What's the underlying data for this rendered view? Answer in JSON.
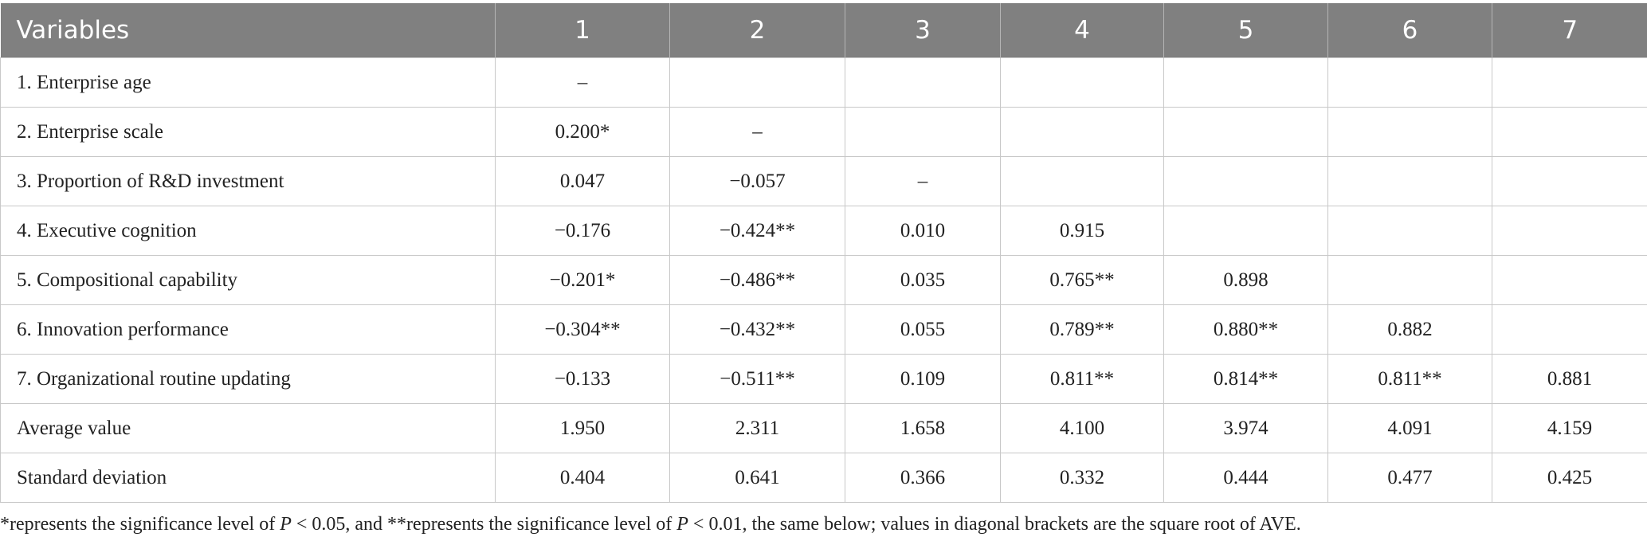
{
  "table": {
    "header": [
      "Variables",
      "1",
      "2",
      "3",
      "4",
      "5",
      "6",
      "7"
    ],
    "rows": [
      [
        "1. Enterprise age",
        "–",
        null,
        null,
        null,
        null,
        null,
        null
      ],
      [
        "2. Enterprise scale",
        "0.200*",
        "–",
        null,
        null,
        null,
        null,
        null
      ],
      [
        "3. Proportion of R&D investment",
        "0.047",
        "−0.057",
        "–",
        null,
        null,
        null,
        null
      ],
      [
        "4. Executive cognition",
        "−0.176",
        "−0.424**",
        "0.010",
        "0.915",
        null,
        null,
        null
      ],
      [
        "5. Compositional capability",
        "−0.201*",
        "−0.486**",
        "0.035",
        "0.765**",
        "0.898",
        null,
        null
      ],
      [
        "6. Innovation performance",
        "−0.304**",
        "−0.432**",
        "0.055",
        "0.789**",
        "0.880**",
        "0.882",
        null
      ],
      [
        "7. Organizational routine updating",
        "−0.133",
        "−0.511**",
        "0.109",
        "0.811**",
        "0.814**",
        "0.811**",
        "0.881"
      ],
      [
        "Average value",
        "1.950",
        "2.311",
        "1.658",
        "4.100",
        "3.974",
        "4.091",
        "4.159"
      ],
      [
        "Standard deviation",
        "0.404",
        "0.641",
        "0.366",
        "0.332",
        "0.444",
        "0.477",
        "0.425"
      ]
    ]
  },
  "footnote": [
    "*represents the significance level of ",
    "P",
    " < 0.05, and **represents the significance level of ",
    "P",
    " < 0.01, the same below; values in diagonal brackets are the square root of AVE."
  ]
}
